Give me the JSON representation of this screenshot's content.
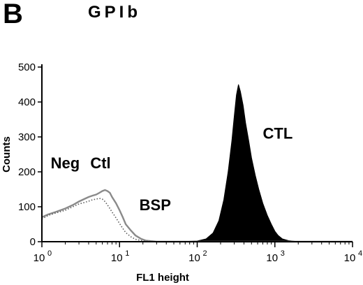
{
  "panel_label": "B",
  "colors": {
    "ctl_fill": "#000000",
    "bsp_line": "#8a8a8a",
    "neg_line": "#5a5a5a",
    "axis": "#000000"
  },
  "chart_data": {
    "type": "area",
    "title": "GPIb",
    "xlabel": "FL1 height",
    "ylabel": "Counts",
    "x_scale": "log",
    "xlim": [
      1,
      10000
    ],
    "ylim": [
      0,
      500
    ],
    "x_ticks": [
      {
        "value": 1,
        "base": "10",
        "exp": "0"
      },
      {
        "value": 10,
        "base": "10",
        "exp": "1"
      },
      {
        "value": 100,
        "base": "10",
        "exp": "2"
      },
      {
        "value": 1000,
        "base": "10",
        "exp": "3"
      },
      {
        "value": 10000,
        "base": "10",
        "exp": "4"
      }
    ],
    "y_ticks": [
      0,
      100,
      200,
      300,
      400,
      500
    ],
    "grid": false,
    "annotations": [
      {
        "text": "Neg",
        "x": 1.3,
        "y": 210
      },
      {
        "text": "Ctl",
        "x": 4.2,
        "y": 210
      },
      {
        "text": "BSP",
        "x": 18,
        "y": 90
      },
      {
        "text": "CTL",
        "x": 700,
        "y": 295
      }
    ],
    "series": [
      {
        "name": "CTL",
        "style": "filled",
        "x": [
          1,
          20,
          60,
          100,
          130,
          160,
          190,
          220,
          250,
          280,
          300,
          320,
          340,
          360,
          390,
          420,
          460,
          500,
          560,
          620,
          700,
          800,
          900,
          1000,
          1100,
          1250,
          1500,
          2000,
          10000
        ],
        "y": [
          0,
          0,
          0,
          2,
          8,
          25,
          60,
          120,
          200,
          290,
          360,
          420,
          450,
          430,
          390,
          340,
          290,
          240,
          190,
          150,
          110,
          75,
          50,
          30,
          18,
          8,
          3,
          0,
          0
        ]
      },
      {
        "name": "BSP",
        "style": "line",
        "x": [
          1,
          1.2,
          1.5,
          2,
          2.5,
          3,
          3.5,
          4,
          4.5,
          5,
          5.5,
          6,
          6.5,
          7,
          7.5,
          8,
          9,
          10,
          11,
          12,
          14,
          16,
          19,
          22,
          30,
          50,
          100,
          10000
        ],
        "y": [
          70,
          78,
          85,
          95,
          105,
          115,
          122,
          128,
          132,
          135,
          140,
          145,
          148,
          145,
          140,
          128,
          110,
          90,
          70,
          50,
          32,
          18,
          8,
          3,
          0,
          0,
          0,
          0
        ]
      },
      {
        "name": "Neg Ctl",
        "style": "dotted",
        "x": [
          1,
          1.2,
          1.5,
          2,
          2.5,
          3,
          3.5,
          4,
          4.5,
          5,
          5.5,
          6,
          6.5,
          7,
          7.5,
          8,
          9,
          10,
          11,
          12,
          14,
          16,
          20,
          30,
          10000
        ],
        "y": [
          65,
          75,
          82,
          90,
          100,
          108,
          112,
          116,
          120,
          122,
          124,
          122,
          115,
          105,
          95,
          85,
          68,
          52,
          38,
          26,
          14,
          7,
          2,
          0,
          0
        ]
      }
    ]
  }
}
